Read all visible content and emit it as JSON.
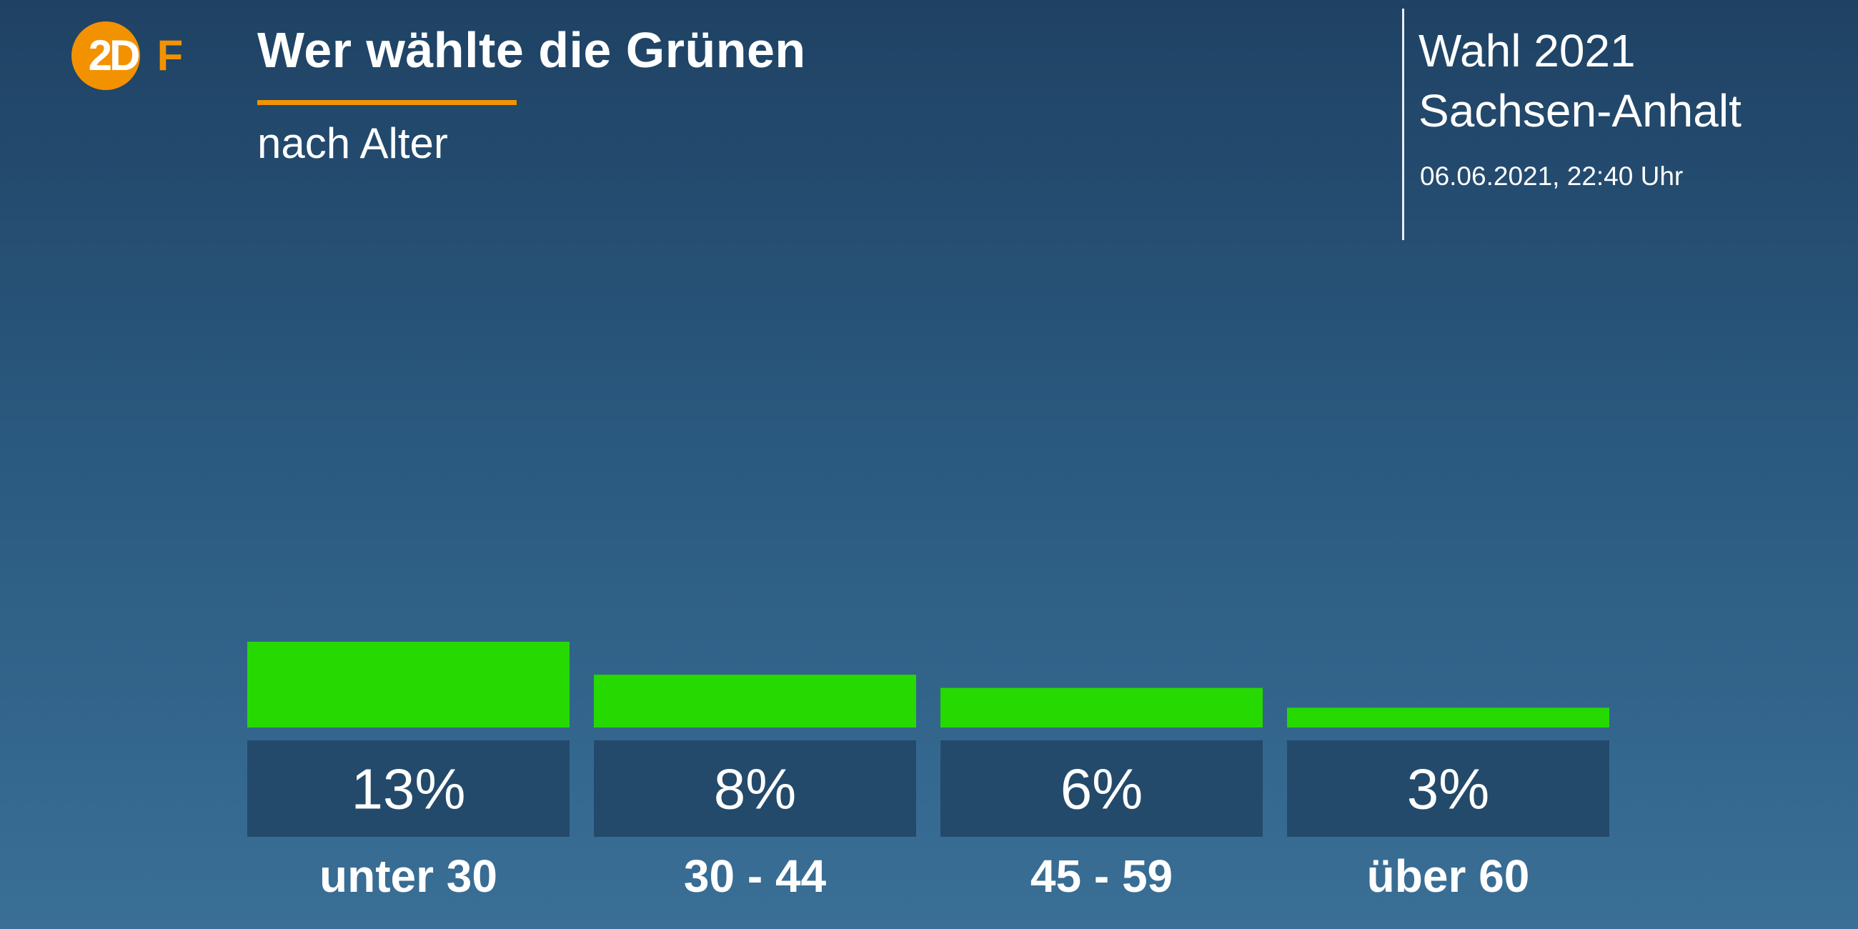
{
  "header": {
    "title": "Wer wählte die Grünen",
    "subtitle": "nach Alter",
    "accent_color": "#f39200"
  },
  "logo": {
    "text": "2DF",
    "color": "#f39200"
  },
  "event": {
    "line1": "Wahl 2021",
    "line2": "Sachsen-Anhalt",
    "timestamp": "06.06.2021, 22:40 Uhr"
  },
  "chart_data": {
    "type": "bar",
    "categories": [
      "unter 30",
      "30 - 44",
      "45 - 59",
      "über 60"
    ],
    "values": [
      13,
      8,
      6,
      3
    ],
    "value_labels": [
      "13%",
      "8%",
      "6%",
      "3%"
    ],
    "unit": "%",
    "bar_color": "#26d900",
    "label_box_color": "#234a6b",
    "grid": false,
    "legend": "none"
  }
}
